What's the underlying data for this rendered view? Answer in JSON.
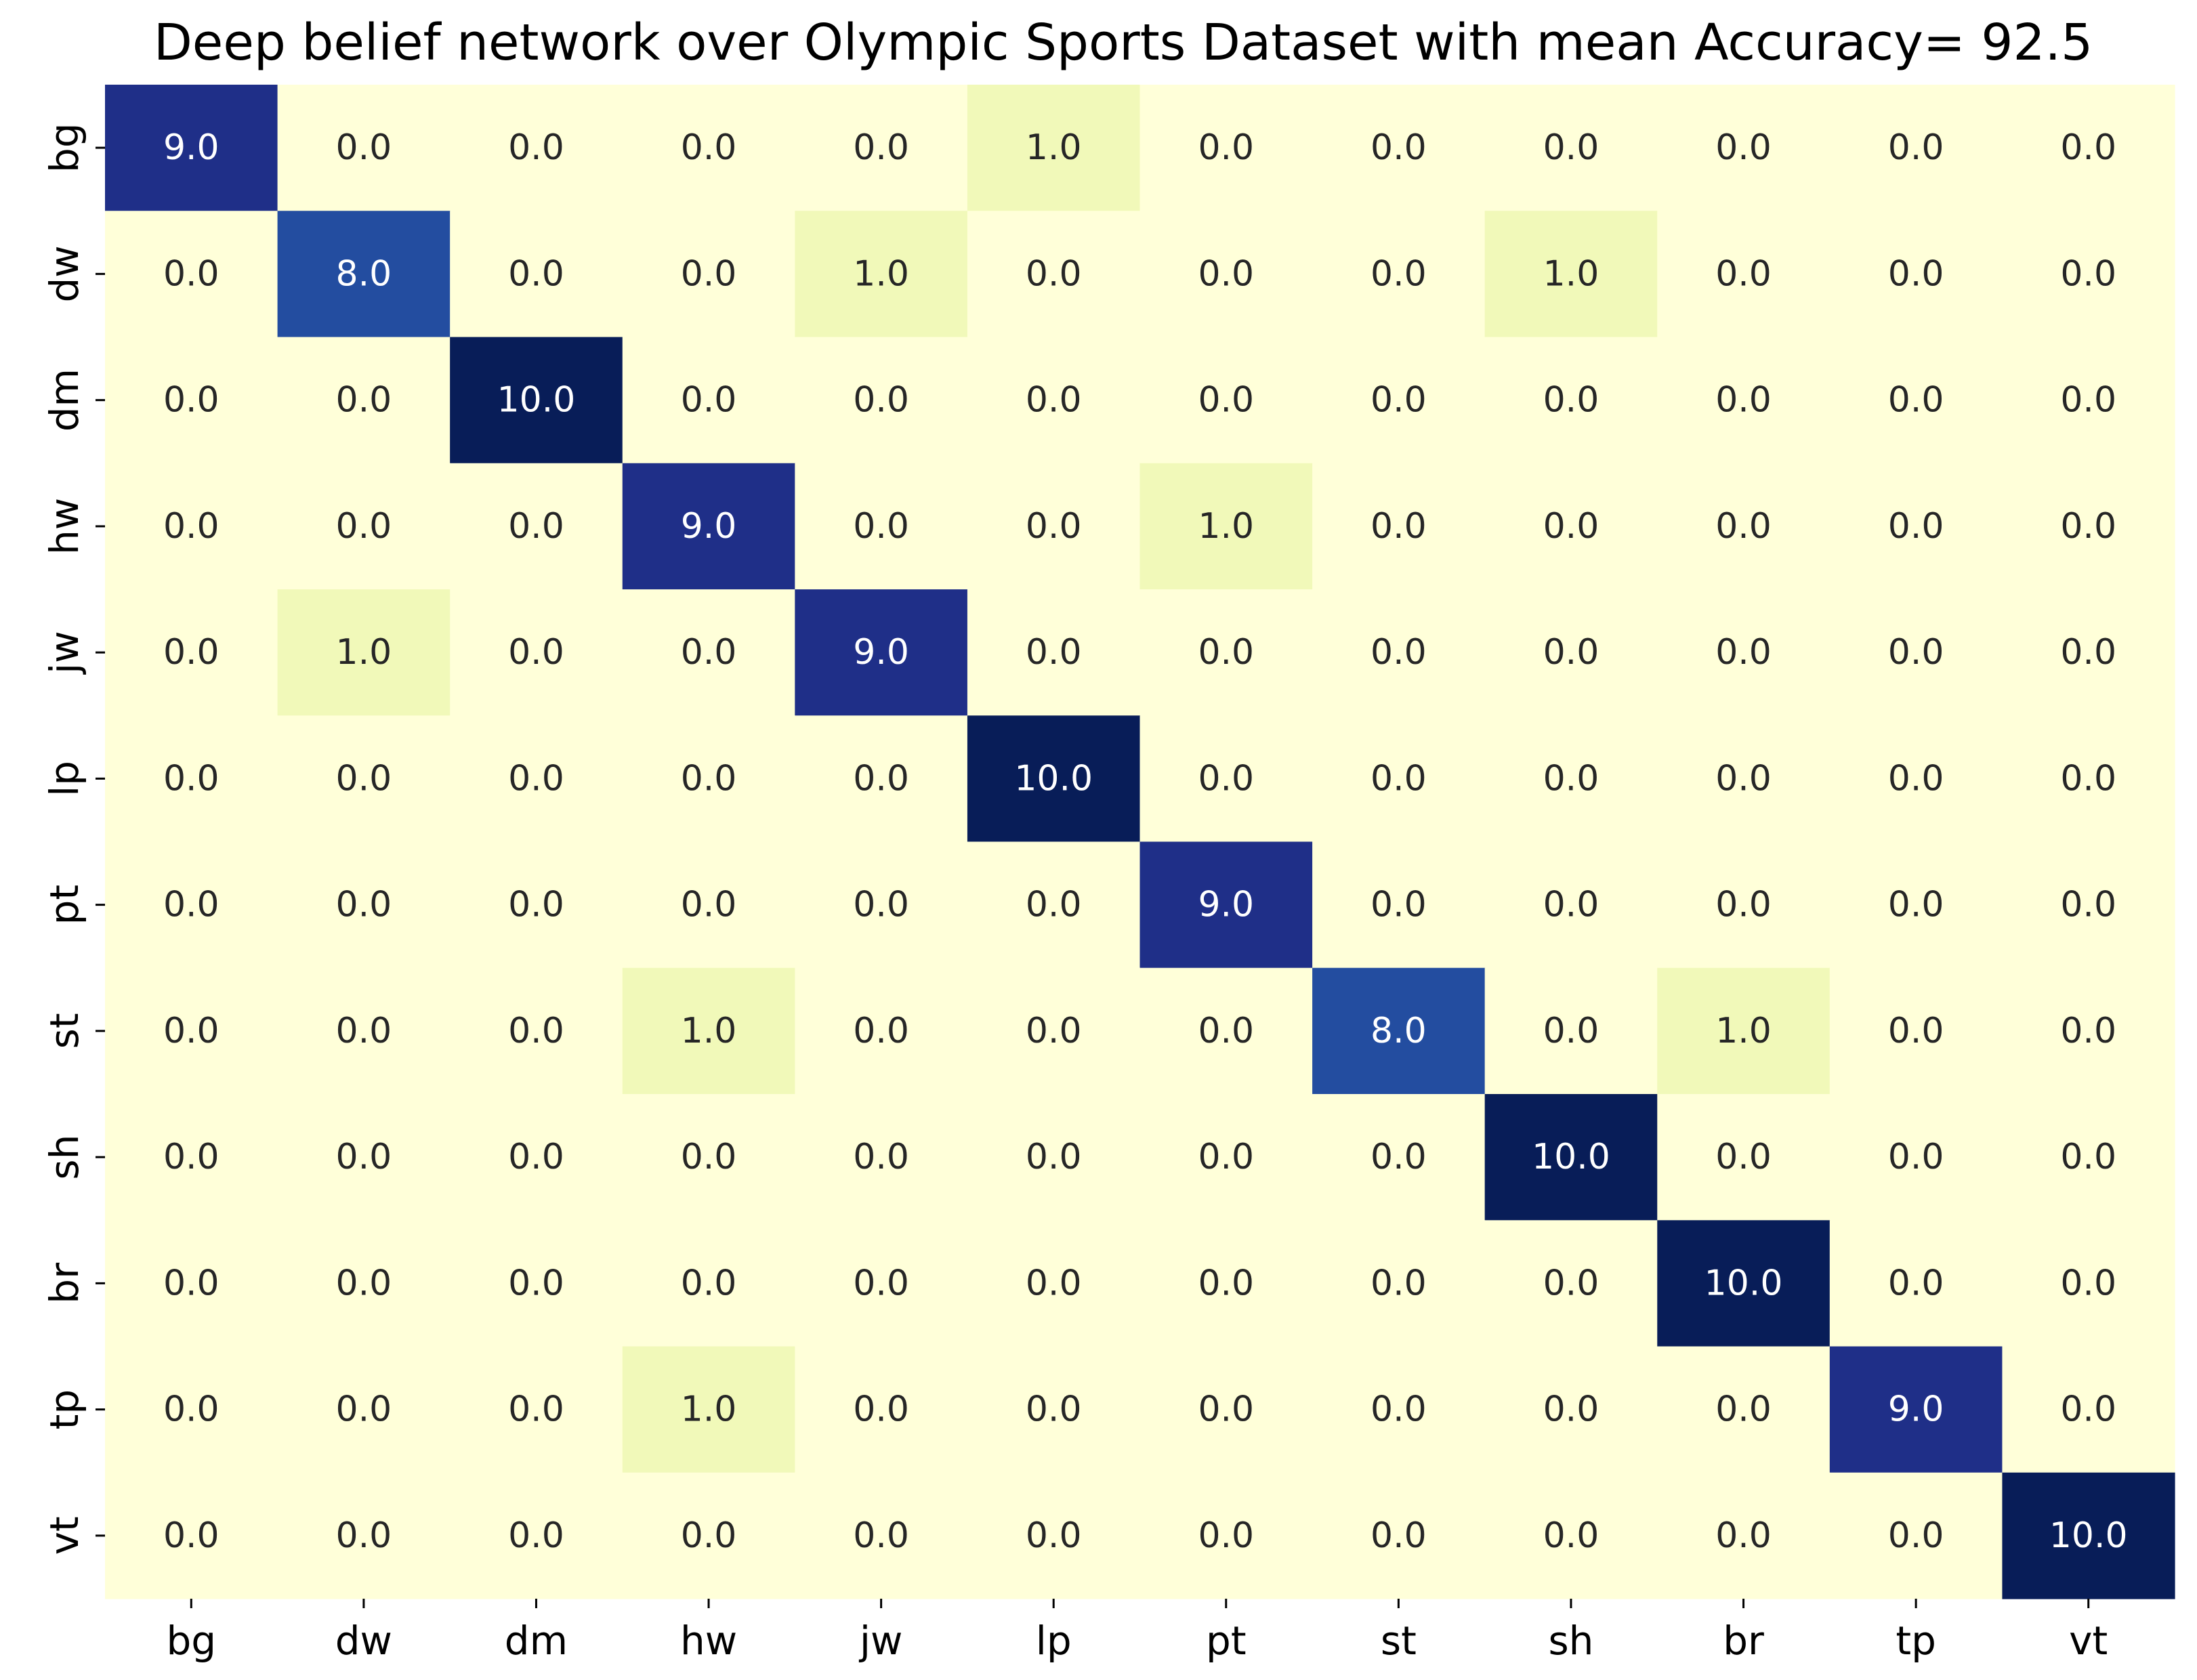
{
  "chart_data": {
    "type": "heatmap",
    "title": "Deep belief network over Olympic Sports Dataset with mean Accuracy= 92.5",
    "xlabel": "",
    "ylabel": "",
    "x_categories": [
      "bg",
      "dw",
      "dm",
      "hw",
      "jw",
      "lp",
      "pt",
      "st",
      "sh",
      "br",
      "tp",
      "vt"
    ],
    "y_categories": [
      "bg",
      "dw",
      "dm",
      "hw",
      "jw",
      "lp",
      "pt",
      "st",
      "sh",
      "br",
      "tp",
      "vt"
    ],
    "value_range": [
      0,
      10
    ],
    "colormap": "YlGnBu",
    "colorbar": false,
    "grid": false,
    "matrix": [
      [
        9.0,
        0.0,
        0.0,
        0.0,
        0.0,
        1.0,
        0.0,
        0.0,
        0.0,
        0.0,
        0.0,
        0.0
      ],
      [
        0.0,
        8.0,
        0.0,
        0.0,
        1.0,
        0.0,
        0.0,
        0.0,
        1.0,
        0.0,
        0.0,
        0.0
      ],
      [
        0.0,
        0.0,
        10.0,
        0.0,
        0.0,
        0.0,
        0.0,
        0.0,
        0.0,
        0.0,
        0.0,
        0.0
      ],
      [
        0.0,
        0.0,
        0.0,
        9.0,
        0.0,
        0.0,
        1.0,
        0.0,
        0.0,
        0.0,
        0.0,
        0.0
      ],
      [
        0.0,
        1.0,
        0.0,
        0.0,
        9.0,
        0.0,
        0.0,
        0.0,
        0.0,
        0.0,
        0.0,
        0.0
      ],
      [
        0.0,
        0.0,
        0.0,
        0.0,
        0.0,
        10.0,
        0.0,
        0.0,
        0.0,
        0.0,
        0.0,
        0.0
      ],
      [
        0.0,
        0.0,
        0.0,
        0.0,
        0.0,
        0.0,
        9.0,
        0.0,
        0.0,
        0.0,
        0.0,
        0.0
      ],
      [
        0.0,
        0.0,
        0.0,
        1.0,
        0.0,
        0.0,
        0.0,
        8.0,
        0.0,
        1.0,
        0.0,
        0.0
      ],
      [
        0.0,
        0.0,
        0.0,
        0.0,
        0.0,
        0.0,
        0.0,
        0.0,
        10.0,
        0.0,
        0.0,
        0.0
      ],
      [
        0.0,
        0.0,
        0.0,
        0.0,
        0.0,
        0.0,
        0.0,
        0.0,
        0.0,
        10.0,
        0.0,
        0.0
      ],
      [
        0.0,
        0.0,
        0.0,
        1.0,
        0.0,
        0.0,
        0.0,
        0.0,
        0.0,
        0.0,
        9.0,
        0.0
      ],
      [
        0.0,
        0.0,
        0.0,
        0.0,
        0.0,
        0.0,
        0.0,
        0.0,
        0.0,
        0.0,
        0.0,
        10.0
      ]
    ],
    "value_format": "0.1f",
    "colors": {
      "v0": "#ffffd9",
      "v1": "#f1f9c0",
      "v8": "#2d57a6",
      "v9": "#223293",
      "v10": "#081d58",
      "text_light": "#ffffff",
      "text_dark": "#262626",
      "axis_text": "#000000",
      "tick": "#000000"
    }
  }
}
